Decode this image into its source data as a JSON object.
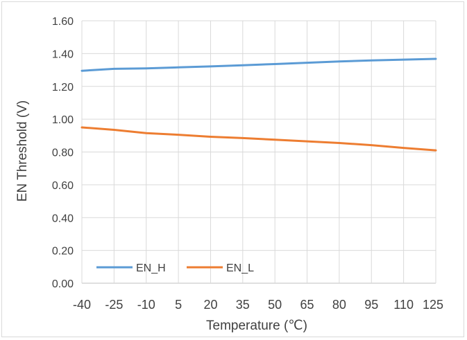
{
  "chart_data": {
    "type": "line",
    "title": "",
    "xlabel": "Temperature (℃)",
    "ylabel": "EN Threshold (V)",
    "x_tick_labels": [
      "-40",
      "-25",
      "-10",
      "5",
      "20",
      "35",
      "50",
      "65",
      "80",
      "95",
      "110",
      "125"
    ],
    "y_tick_labels": [
      "0.00",
      "0.20",
      "0.40",
      "0.60",
      "0.80",
      "1.00",
      "1.20",
      "1.40",
      "1.60"
    ],
    "ylim": [
      0,
      1.6
    ],
    "xlim": [
      -40,
      125
    ],
    "grid": true,
    "legend": "bottom-left",
    "series": [
      {
        "name": "EN_H",
        "color": "#5b9bd5",
        "x": [
          -40,
          -25,
          -10,
          5,
          20,
          35,
          50,
          65,
          80,
          95,
          110,
          125
        ],
        "values": [
          1.295,
          1.307,
          1.31,
          1.316,
          1.322,
          1.329,
          1.336,
          1.344,
          1.352,
          1.358,
          1.363,
          1.368
        ]
      },
      {
        "name": "EN_L",
        "color": "#ed7d31",
        "x": [
          -40,
          -25,
          -10,
          5,
          20,
          35,
          50,
          65,
          80,
          95,
          110,
          125
        ],
        "values": [
          0.95,
          0.935,
          0.915,
          0.905,
          0.893,
          0.885,
          0.875,
          0.865,
          0.855,
          0.842,
          0.825,
          0.81
        ]
      }
    ]
  }
}
